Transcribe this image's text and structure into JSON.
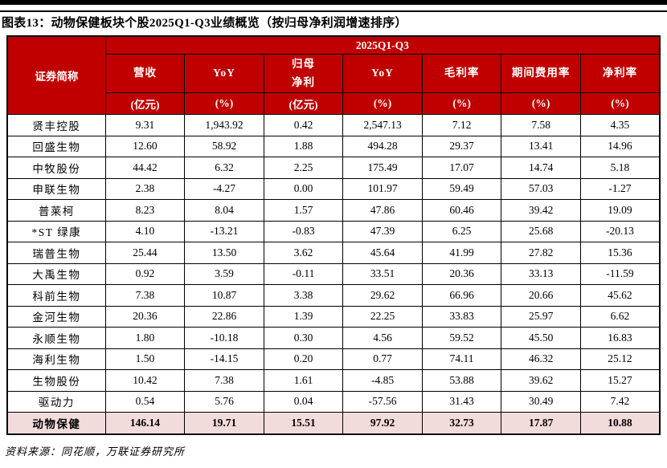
{
  "title": "图表13：动物保健板块个股2025Q1-Q3业绩概览（按归母净利润增速排序）",
  "table": {
    "corner_header": "证券简称",
    "group_header": "2025Q1-Q3",
    "columns": [
      {
        "l1": "营收",
        "l2": "",
        "unit": "(亿元)"
      },
      {
        "l1": "YoY",
        "l2": "",
        "unit": "(%)"
      },
      {
        "l1": "归母",
        "l2": "净利",
        "unit": "(亿元)"
      },
      {
        "l1": "YoY",
        "l2": "",
        "unit": "(%)"
      },
      {
        "l1": "毛利率",
        "l2": "",
        "unit": "(%)"
      },
      {
        "l1": "期间费用率",
        "l2": "",
        "unit": "(%)"
      },
      {
        "l1": "净利率",
        "l2": "",
        "unit": "(%)"
      }
    ],
    "rows": [
      {
        "name": "贤丰控股",
        "values": [
          "9.31",
          "1,943.92",
          "0.42",
          "2,547.13",
          "7.12",
          "7.58",
          "4.35"
        ]
      },
      {
        "name": "回盛生物",
        "values": [
          "12.60",
          "58.92",
          "1.88",
          "494.28",
          "29.37",
          "13.41",
          "14.96"
        ]
      },
      {
        "name": "中牧股份",
        "values": [
          "44.42",
          "6.32",
          "2.25",
          "175.49",
          "17.07",
          "14.74",
          "5.18"
        ]
      },
      {
        "name": "申联生物",
        "values": [
          "2.38",
          "-4.27",
          "0.00",
          "101.97",
          "59.49",
          "57.03",
          "-1.27"
        ]
      },
      {
        "name": "普莱柯",
        "values": [
          "8.23",
          "8.04",
          "1.57",
          "47.86",
          "60.46",
          "39.42",
          "19.09"
        ]
      },
      {
        "name": "*ST 绿康",
        "values": [
          "4.10",
          "-13.21",
          "-0.83",
          "47.39",
          "6.25",
          "25.68",
          "-20.13"
        ]
      },
      {
        "name": "瑞普生物",
        "values": [
          "25.44",
          "13.50",
          "3.62",
          "45.64",
          "41.99",
          "27.82",
          "15.36"
        ]
      },
      {
        "name": "大禹生物",
        "values": [
          "0.92",
          "3.59",
          "-0.11",
          "33.51",
          "20.36",
          "33.13",
          "-11.59"
        ]
      },
      {
        "name": "科前生物",
        "values": [
          "7.38",
          "10.87",
          "3.38",
          "29.62",
          "66.96",
          "20.66",
          "45.62"
        ]
      },
      {
        "name": "金河生物",
        "values": [
          "20.36",
          "22.86",
          "1.39",
          "22.25",
          "33.83",
          "25.97",
          "6.62"
        ]
      },
      {
        "name": "永顺生物",
        "values": [
          "1.80",
          "-10.18",
          "0.30",
          "4.56",
          "59.52",
          "45.50",
          "16.83"
        ]
      },
      {
        "name": "海利生物",
        "values": [
          "1.50",
          "-14.15",
          "0.20",
          "0.77",
          "74.11",
          "46.32",
          "25.12"
        ]
      },
      {
        "name": "生物股份",
        "values": [
          "10.42",
          "7.38",
          "1.61",
          "-4.85",
          "53.88",
          "39.62",
          "15.27"
        ]
      },
      {
        "name": "驱动力",
        "values": [
          "0.54",
          "5.76",
          "0.04",
          "-57.56",
          "31.43",
          "30.49",
          "7.42"
        ]
      }
    ],
    "summary": {
      "name": "动物保健",
      "values": [
        "146.14",
        "19.71",
        "15.51",
        "97.92",
        "32.73",
        "17.87",
        "10.88"
      ]
    }
  },
  "footer": {
    "source": "资料来源：同花顺，万联证券研究所"
  },
  "colors": {
    "header_bg": "#C00000",
    "header_text": "#FFFFFF",
    "summary_bg": "#F2DCDB",
    "border": "#000000"
  }
}
